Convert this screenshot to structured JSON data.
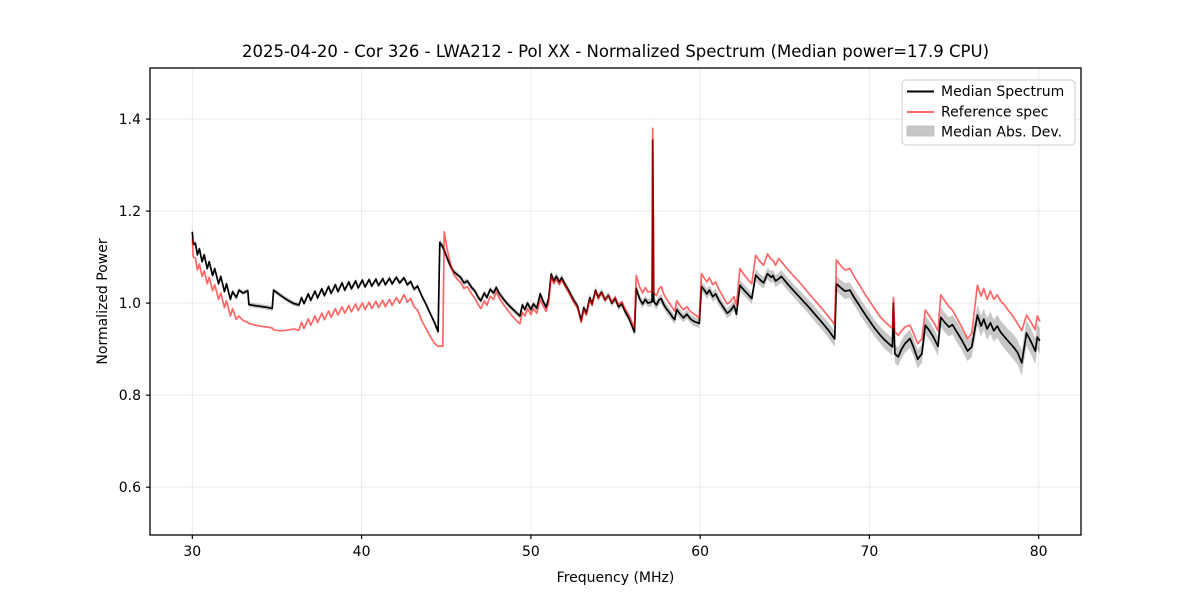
{
  "chart_data": {
    "type": "line",
    "title": "2025-04-20 - Cor 326 - LWA212 - Pol XX - Normalized Spectrum (Median power=17.9 CPU)",
    "xlabel": "Frequency (MHz)",
    "ylabel": "Normalized Power",
    "xlim": [
      27.5,
      82.5
    ],
    "ylim": [
      0.496,
      1.511
    ],
    "x_ticks": [
      30,
      40,
      50,
      60,
      70,
      80
    ],
    "y_ticks": [
      0.6,
      0.8,
      1.0,
      1.2,
      1.4
    ],
    "grid": true,
    "colors": {
      "median_line": "#000000",
      "reference_line": "#ff0000",
      "reference_opacity": 0.6,
      "band_fill": "#000000",
      "band_opacity": 0.22,
      "grid_line": "#eaeaea",
      "spine": "#000000",
      "legend_border": "#cccccc"
    },
    "legend": {
      "position": "upper right",
      "entries": [
        {
          "label": "Median Spectrum",
          "swatch": "black-line"
        },
        {
          "label": "Reference spec",
          "swatch": "red-line"
        },
        {
          "label": "Median Abs. Dev.",
          "swatch": "gray-patch"
        }
      ]
    },
    "series_note": "points columns: [freq_MHz, median_power, reference_power, mad_half_width]",
    "points": [
      [
        30.0,
        1.155,
        1.14,
        0.012
      ],
      [
        30.06,
        1.128,
        1.1,
        0.006
      ],
      [
        30.18,
        1.13,
        1.098,
        0.006
      ],
      [
        30.3,
        1.105,
        1.072,
        0.005
      ],
      [
        30.42,
        1.118,
        1.085,
        0.005
      ],
      [
        30.58,
        1.09,
        1.058,
        0.005
      ],
      [
        30.7,
        1.105,
        1.07,
        0.005
      ],
      [
        30.88,
        1.075,
        1.042,
        0.005
      ],
      [
        31.0,
        1.09,
        1.056,
        0.005
      ],
      [
        31.2,
        1.06,
        1.027,
        0.005
      ],
      [
        31.32,
        1.075,
        1.04,
        0.005
      ],
      [
        31.55,
        1.042,
        1.008,
        0.005
      ],
      [
        31.68,
        1.058,
        1.022,
        0.005
      ],
      [
        31.9,
        1.025,
        0.99,
        0.005
      ],
      [
        32.02,
        1.042,
        1.005,
        0.005
      ],
      [
        32.25,
        1.008,
        0.972,
        0.005
      ],
      [
        32.38,
        1.025,
        0.988,
        0.005
      ],
      [
        32.6,
        1.012,
        0.965,
        0.005
      ],
      [
        32.75,
        1.028,
        0.972,
        0.005
      ],
      [
        33.0,
        1.022,
        0.962,
        0.005
      ],
      [
        33.28,
        1.027,
        0.958,
        0.005
      ],
      [
        33.34,
        0.997,
        0.956,
        0.005
      ],
      [
        33.6,
        0.995,
        0.953,
        0.005
      ],
      [
        34.0,
        0.993,
        0.95,
        0.005
      ],
      [
        34.4,
        0.991,
        0.948,
        0.005
      ],
      [
        34.72,
        0.988,
        0.946,
        0.005
      ],
      [
        34.8,
        1.028,
        0.942,
        0.005
      ],
      [
        35.1,
        1.02,
        0.94,
        0.005
      ],
      [
        35.4,
        1.012,
        0.94,
        0.005
      ],
      [
        35.7,
        1.005,
        0.942,
        0.005
      ],
      [
        36.0,
        0.999,
        0.944,
        0.005
      ],
      [
        36.3,
        0.996,
        0.941,
        0.005
      ],
      [
        36.45,
        1.012,
        0.958,
        0.005
      ],
      [
        36.6,
        0.999,
        0.945,
        0.005
      ],
      [
        36.85,
        1.02,
        0.966,
        0.005
      ],
      [
        37.0,
        1.006,
        0.952,
        0.005
      ],
      [
        37.25,
        1.026,
        0.972,
        0.005
      ],
      [
        37.4,
        1.011,
        0.958,
        0.005
      ],
      [
        37.65,
        1.031,
        0.978,
        0.005
      ],
      [
        37.8,
        1.016,
        0.964,
        0.005
      ],
      [
        38.05,
        1.036,
        0.983,
        0.005
      ],
      [
        38.2,
        1.021,
        0.969,
        0.005
      ],
      [
        38.45,
        1.04,
        0.988,
        0.005
      ],
      [
        38.6,
        1.025,
        0.974,
        0.005
      ],
      [
        38.85,
        1.044,
        0.992,
        0.005
      ],
      [
        39.0,
        1.028,
        0.978,
        0.005
      ],
      [
        39.25,
        1.046,
        0.995,
        0.005
      ],
      [
        39.4,
        1.031,
        0.981,
        0.005
      ],
      [
        39.65,
        1.048,
        0.998,
        0.005
      ],
      [
        39.8,
        1.033,
        0.984,
        0.005
      ],
      [
        40.05,
        1.05,
        1.0,
        0.005
      ],
      [
        40.2,
        1.035,
        0.986,
        0.005
      ],
      [
        40.45,
        1.051,
        1.002,
        0.005
      ],
      [
        40.6,
        1.037,
        0.988,
        0.005
      ],
      [
        40.85,
        1.052,
        1.004,
        0.005
      ],
      [
        41.0,
        1.038,
        0.99,
        0.005
      ],
      [
        41.25,
        1.053,
        1.006,
        0.005
      ],
      [
        41.4,
        1.04,
        0.992,
        0.005
      ],
      [
        41.65,
        1.054,
        1.008,
        0.005
      ],
      [
        41.8,
        1.042,
        0.995,
        0.005
      ],
      [
        42.05,
        1.056,
        1.012,
        0.005
      ],
      [
        42.25,
        1.044,
        1.0,
        0.005
      ],
      [
        42.5,
        1.055,
        1.018,
        0.005
      ],
      [
        42.7,
        1.04,
        1.002,
        0.005
      ],
      [
        42.9,
        1.047,
        1.01,
        0.005
      ],
      [
        43.1,
        1.03,
        0.992,
        0.005
      ],
      [
        43.3,
        1.037,
        0.985,
        0.005
      ],
      [
        43.55,
        1.016,
        0.962,
        0.005
      ],
      [
        43.8,
        0.998,
        0.945,
        0.005
      ],
      [
        44.05,
        0.978,
        0.928,
        0.006
      ],
      [
        44.3,
        0.958,
        0.913,
        0.006
      ],
      [
        44.52,
        0.938,
        0.906,
        0.008
      ],
      [
        44.62,
        1.132,
        0.907,
        0.008
      ],
      [
        44.8,
        1.122,
        0.906,
        0.008
      ],
      [
        44.88,
        1.115,
        1.155,
        0.008
      ],
      [
        45.05,
        1.098,
        1.118,
        0.007
      ],
      [
        45.25,
        1.08,
        1.085,
        0.006
      ],
      [
        45.45,
        1.068,
        1.062,
        0.006
      ],
      [
        45.65,
        1.062,
        1.052,
        0.006
      ],
      [
        45.85,
        1.056,
        1.045,
        0.006
      ],
      [
        46.05,
        1.044,
        1.032,
        0.006
      ],
      [
        46.25,
        1.048,
        1.036,
        0.006
      ],
      [
        46.5,
        1.034,
        1.02,
        0.006
      ],
      [
        46.7,
        1.026,
        1.01,
        0.006
      ],
      [
        46.9,
        1.012,
        0.996,
        0.006
      ],
      [
        47.05,
        1.005,
        0.988,
        0.006
      ],
      [
        47.25,
        1.022,
        1.005,
        0.006
      ],
      [
        47.4,
        1.012,
        0.995,
        0.006
      ],
      [
        47.6,
        1.03,
        1.015,
        0.006
      ],
      [
        47.8,
        1.022,
        1.008,
        0.006
      ],
      [
        47.95,
        1.034,
        1.025,
        0.006
      ],
      [
        48.15,
        1.02,
        1.01,
        0.006
      ],
      [
        48.4,
        1.008,
        0.996,
        0.006
      ],
      [
        48.65,
        0.997,
        0.984,
        0.006
      ],
      [
        48.9,
        0.988,
        0.972,
        0.006
      ],
      [
        49.15,
        0.979,
        0.962,
        0.006
      ],
      [
        49.35,
        0.972,
        0.955,
        0.006
      ],
      [
        49.5,
        0.996,
        0.98,
        0.006
      ],
      [
        49.65,
        0.986,
        0.972,
        0.006
      ],
      [
        49.8,
        1.0,
        0.988,
        0.006
      ],
      [
        50.0,
        0.986,
        0.975,
        0.007
      ],
      [
        50.15,
        0.998,
        0.988,
        0.007
      ],
      [
        50.35,
        0.989,
        0.978,
        0.007
      ],
      [
        50.55,
        1.02,
        1.008,
        0.007
      ],
      [
        50.72,
        1.004,
        0.994,
        0.007
      ],
      [
        50.9,
        0.991,
        0.982,
        0.007
      ],
      [
        51.05,
        1.01,
        1.0,
        0.007
      ],
      [
        51.2,
        1.063,
        1.058,
        0.008
      ],
      [
        51.35,
        1.048,
        1.042,
        0.008
      ],
      [
        51.5,
        1.058,
        1.052,
        0.008
      ],
      [
        51.68,
        1.046,
        1.04,
        0.008
      ],
      [
        51.82,
        1.055,
        1.05,
        0.008
      ],
      [
        52.0,
        1.042,
        1.038,
        0.008
      ],
      [
        52.25,
        1.026,
        1.022,
        0.008
      ],
      [
        52.5,
        1.008,
        1.005,
        0.008
      ],
      [
        52.75,
        0.994,
        0.99,
        0.008
      ],
      [
        52.98,
        0.962,
        0.958,
        0.008
      ],
      [
        53.12,
        0.99,
        0.985,
        0.008
      ],
      [
        53.28,
        0.978,
        0.974,
        0.008
      ],
      [
        53.48,
        1.012,
        1.008,
        0.008
      ],
      [
        53.62,
        0.998,
        0.995,
        0.008
      ],
      [
        53.82,
        1.028,
        1.026,
        0.008
      ],
      [
        53.98,
        1.012,
        1.01,
        0.008
      ],
      [
        54.18,
        1.024,
        1.022,
        0.008
      ],
      [
        54.38,
        1.007,
        1.006,
        0.008
      ],
      [
        54.58,
        1.017,
        1.017,
        0.008
      ],
      [
        54.78,
        1.0,
        1.002,
        0.008
      ],
      [
        54.98,
        1.01,
        1.013,
        0.008
      ],
      [
        55.18,
        0.992,
        0.996,
        0.008
      ],
      [
        55.38,
        0.998,
        1.003,
        0.008
      ],
      [
        55.58,
        0.981,
        0.987,
        0.008
      ],
      [
        55.78,
        0.968,
        0.975,
        0.008
      ],
      [
        55.98,
        0.95,
        0.958,
        0.009
      ],
      [
        56.12,
        0.937,
        0.946,
        0.009
      ],
      [
        56.22,
        1.032,
        1.06,
        0.009
      ],
      [
        56.42,
        1.01,
        1.036,
        0.009
      ],
      [
        56.6,
        0.998,
        1.022,
        0.009
      ],
      [
        56.76,
        1.008,
        1.034,
        0.009
      ],
      [
        56.92,
        1.0,
        1.024,
        0.009
      ],
      [
        57.16,
        1.003,
        1.026,
        0.01
      ],
      [
        57.2,
        1.355,
        1.38,
        0.065
      ],
      [
        57.26,
        1.003,
        1.022,
        0.01
      ],
      [
        57.42,
        0.996,
        1.016,
        0.01
      ],
      [
        57.55,
        1.006,
        1.03,
        0.01
      ],
      [
        57.7,
        1.01,
        1.036,
        0.01
      ],
      [
        57.85,
        0.997,
        1.02,
        0.01
      ],
      [
        58.0,
        0.988,
        1.01,
        0.01
      ],
      [
        58.18,
        0.98,
        1.0,
        0.01
      ],
      [
        58.36,
        0.97,
        0.99,
        0.01
      ],
      [
        58.5,
        0.964,
        0.982,
        0.01
      ],
      [
        58.62,
        0.986,
        1.005,
        0.01
      ],
      [
        58.82,
        0.976,
        0.994,
        0.01
      ],
      [
        59.02,
        0.968,
        0.985,
        0.01
      ],
      [
        59.22,
        0.976,
        0.992,
        0.01
      ],
      [
        59.42,
        0.966,
        0.982,
        0.01
      ],
      [
        59.65,
        0.96,
        0.976,
        0.01
      ],
      [
        59.95,
        0.956,
        0.968,
        0.01
      ],
      [
        60.08,
        1.036,
        1.064,
        0.011
      ],
      [
        60.25,
        1.028,
        1.054,
        0.011
      ],
      [
        60.4,
        1.02,
        1.046,
        0.011
      ],
      [
        60.55,
        1.028,
        1.055,
        0.011
      ],
      [
        60.75,
        1.014,
        1.04,
        0.011
      ],
      [
        60.92,
        1.02,
        1.046,
        0.011
      ],
      [
        61.1,
        1.006,
        1.03,
        0.011
      ],
      [
        61.35,
        0.992,
        1.014,
        0.011
      ],
      [
        61.6,
        0.978,
        0.998,
        0.011
      ],
      [
        61.8,
        0.984,
        1.004,
        0.011
      ],
      [
        62.0,
        0.995,
        1.014,
        0.011
      ],
      [
        62.15,
        0.976,
        0.996,
        0.011
      ],
      [
        62.35,
        1.039,
        1.075,
        0.012
      ],
      [
        62.6,
        1.028,
        1.062,
        0.012
      ],
      [
        62.85,
        1.018,
        1.05,
        0.012
      ],
      [
        63.05,
        1.01,
        1.042,
        0.012
      ],
      [
        63.28,
        1.061,
        1.104,
        0.013
      ],
      [
        63.5,
        1.052,
        1.092,
        0.013
      ],
      [
        63.75,
        1.044,
        1.082,
        0.013
      ],
      [
        63.98,
        1.064,
        1.107,
        0.013
      ],
      [
        64.2,
        1.056,
        1.095,
        0.013
      ],
      [
        64.3,
        1.06,
        1.093,
        0.013
      ],
      [
        64.45,
        1.048,
        1.082,
        0.013
      ],
      [
        64.65,
        1.053,
        1.097,
        0.013
      ],
      [
        64.8,
        1.058,
        1.09,
        0.014
      ],
      [
        65.2,
        1.04,
        1.072,
        0.014
      ],
      [
        65.6,
        1.024,
        1.056,
        0.014
      ],
      [
        66.0,
        1.008,
        1.04,
        0.015
      ],
      [
        66.4,
        0.992,
        1.022,
        0.015
      ],
      [
        66.8,
        0.975,
        1.005,
        0.016
      ],
      [
        67.2,
        0.958,
        0.988,
        0.016
      ],
      [
        67.6,
        0.94,
        0.97,
        0.017
      ],
      [
        67.95,
        0.922,
        0.953,
        0.017
      ],
      [
        68.05,
        1.042,
        1.094,
        0.017
      ],
      [
        68.3,
        1.034,
        1.082,
        0.017
      ],
      [
        68.55,
        1.026,
        1.072,
        0.017
      ],
      [
        68.85,
        1.028,
        1.075,
        0.017
      ],
      [
        69.1,
        1.012,
        1.058,
        0.017
      ],
      [
        69.4,
        0.995,
        1.04,
        0.018
      ],
      [
        69.7,
        0.978,
        1.022,
        0.018
      ],
      [
        70.0,
        0.962,
        1.005,
        0.018
      ],
      [
        70.3,
        0.946,
        0.988,
        0.018
      ],
      [
        70.6,
        0.932,
        0.972,
        0.018
      ],
      [
        70.9,
        0.92,
        0.96,
        0.019
      ],
      [
        71.2,
        0.91,
        0.95,
        0.019
      ],
      [
        71.36,
        0.905,
        0.945,
        0.019
      ],
      [
        71.42,
        1.0,
        1.012,
        0.02
      ],
      [
        71.5,
        0.89,
        0.938,
        0.02
      ],
      [
        71.7,
        0.883,
        0.93,
        0.02
      ],
      [
        71.9,
        0.9,
        0.94,
        0.02
      ],
      [
        72.1,
        0.912,
        0.948,
        0.02
      ],
      [
        72.4,
        0.923,
        0.952,
        0.02
      ],
      [
        72.6,
        0.905,
        0.935,
        0.02
      ],
      [
        72.85,
        0.878,
        0.912,
        0.02
      ],
      [
        73.1,
        0.89,
        0.922,
        0.02
      ],
      [
        73.3,
        0.952,
        0.985,
        0.02
      ],
      [
        73.55,
        0.94,
        0.972,
        0.02
      ],
      [
        73.8,
        0.925,
        0.958,
        0.021
      ],
      [
        74.05,
        0.906,
        0.94,
        0.021
      ],
      [
        74.22,
        0.969,
        1.018,
        0.021
      ],
      [
        74.45,
        0.958,
        1.005,
        0.021
      ],
      [
        74.7,
        0.948,
        0.992,
        0.021
      ],
      [
        74.9,
        0.953,
        0.985,
        0.021
      ],
      [
        75.15,
        0.938,
        0.968,
        0.022
      ],
      [
        75.45,
        0.92,
        0.948,
        0.022
      ],
      [
        75.8,
        0.896,
        0.922,
        0.022
      ],
      [
        76.05,
        0.905,
        0.935,
        0.022
      ],
      [
        76.38,
        0.974,
        1.039,
        0.023
      ],
      [
        76.6,
        0.95,
        1.015,
        0.023
      ],
      [
        76.75,
        0.965,
        1.032,
        0.023
      ],
      [
        76.95,
        0.944,
        1.008,
        0.024
      ],
      [
        77.15,
        0.957,
        1.026,
        0.024
      ],
      [
        77.35,
        0.94,
        1.008,
        0.024
      ],
      [
        77.55,
        0.95,
        1.018,
        0.025
      ],
      [
        77.75,
        0.937,
        1.005,
        0.025
      ],
      [
        78.0,
        0.926,
        0.995,
        0.026
      ],
      [
        78.25,
        0.915,
        0.982,
        0.026
      ],
      [
        78.5,
        0.905,
        0.97,
        0.027
      ],
      [
        78.75,
        0.893,
        0.956,
        0.027
      ],
      [
        79.0,
        0.87,
        0.94,
        0.028
      ],
      [
        79.28,
        0.935,
        0.974,
        0.028
      ],
      [
        79.55,
        0.916,
        0.958,
        0.028
      ],
      [
        79.8,
        0.896,
        0.942,
        0.028
      ],
      [
        79.92,
        0.926,
        0.972,
        0.028
      ],
      [
        80.07,
        0.918,
        0.96,
        0.028
      ]
    ]
  }
}
